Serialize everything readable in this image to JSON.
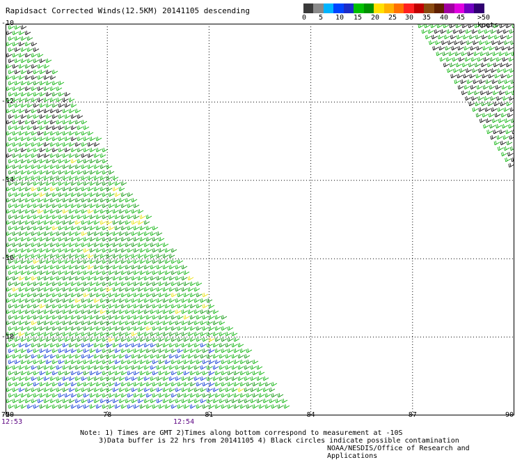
{
  "title": "Rapidsact Corrected Winds(12.5KM) 20141105 descending",
  "legend": {
    "colors": [
      "#3a3a3a",
      "#8a8a8a",
      "#00b4ff",
      "#0044ff",
      "#1c2cc8",
      "#00c000",
      "#009000",
      "#ffe000",
      "#ffb000",
      "#ff7000",
      "#ff2020",
      "#c00000",
      "#8a4a10",
      "#602000",
      "#a000a0",
      "#e000e0",
      "#7000c0",
      "#300070"
    ],
    "labels": [
      "0",
      "5",
      "10",
      "15",
      "20",
      "25",
      "30",
      "35",
      "40",
      "45",
      ">50 knots"
    ]
  },
  "map": {
    "lon_ticks": [
      "75",
      "78",
      "81",
      "84",
      "87",
      "90"
    ],
    "lat_ticks": [
      "-10",
      "-12",
      "-14",
      "-16",
      "-18",
      "-20"
    ],
    "lon_range": [
      75,
      90
    ],
    "lat_range": [
      -10,
      -20
    ],
    "grid": true,
    "gridline_style": "dotted"
  },
  "times": [
    "12:53",
    "12:54"
  ],
  "notes": {
    "line1": "Note: 1) Times are GMT 2)Times along bottom correspond to measurement at -10S",
    "line2": "3)Data buffer is 22 hrs from 20141105 4) Black circles indicate possible contamination"
  },
  "credit": "NOAA/NESDIS/Office of Research and Applications"
}
